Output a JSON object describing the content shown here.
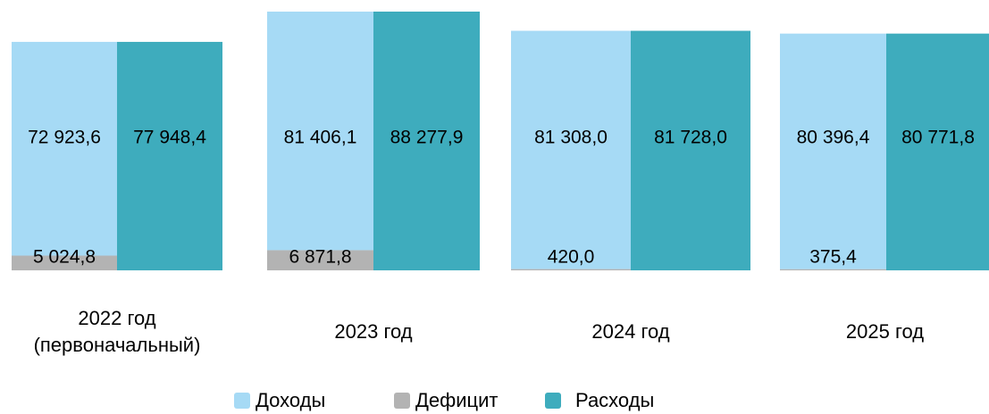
{
  "chart_data": {
    "type": "bar",
    "categories": [
      "2022 год\n(первоначальный)",
      "2023 год",
      "2024 год",
      "2025 год"
    ],
    "series": [
      {
        "name": "Доходы",
        "color": "#a6daf5",
        "values": [
          72923.6,
          81406.1,
          81308.0,
          80396.4
        ],
        "value_labels": [
          "72 923,6",
          "81 406,1",
          "81 308,0",
          "80 396,4"
        ]
      },
      {
        "name": "Дефицит",
        "color": "#b3b3b3",
        "values": [
          5024.8,
          6871.8,
          420.0,
          375.4
        ],
        "value_labels": [
          "5 024,8",
          "6 871,8",
          "420,0",
          "375,4"
        ]
      },
      {
        "name": "Расходы",
        "color": "#3eacbd",
        "values": [
          77948.4,
          88277.9,
          81728.0,
          80771.8
        ],
        "value_labels": [
          "77 948,4",
          "88 277,9",
          "81 728,0",
          "80 771,8"
        ]
      }
    ]
  }
}
